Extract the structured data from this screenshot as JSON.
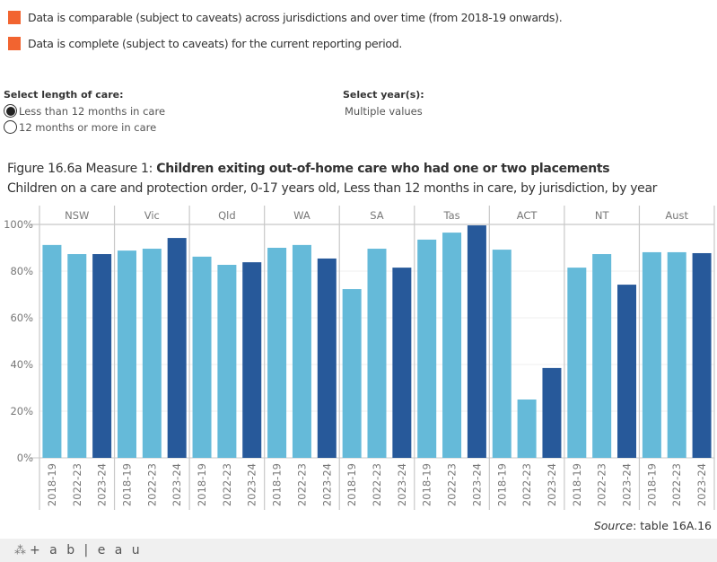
{
  "notes": [
    {
      "text": "Data is comparable (subject to caveats) across jurisdictions and over time (from 2018-19 onwards).",
      "color": "#F26430"
    },
    {
      "text": "Data is complete (subject to caveats) for the current reporting period.",
      "color": "#F26430"
    }
  ],
  "filters": {
    "length_of_care": {
      "label": "Select length of care:",
      "options": [
        {
          "label": "Less than 12 months in care",
          "selected": true
        },
        {
          "label": "12 months or more in care",
          "selected": false
        }
      ]
    },
    "years": {
      "label": "Select year(s):",
      "value": "Multiple values"
    }
  },
  "figure": {
    "title_prefix": "Figure 16.6a Measure 1: ",
    "title_bold": "Children exiting out-of-home care who had one or two placements",
    "subtitle": "Children on a care and protection order, 0-17 years old, Less than 12 months in care, by jurisdiction, by year"
  },
  "source": {
    "label": "Source",
    "text": ": table 16A.16"
  },
  "footer": {
    "brand": "+ a b | e a u"
  },
  "chart_data": {
    "type": "bar",
    "title": "Children exiting out-of-home care who had one or two placements",
    "xlabel": "",
    "ylabel": "",
    "ylim": [
      0,
      100
    ],
    "yticks": [
      0,
      20,
      40,
      60,
      80,
      100
    ],
    "ytick_format": "percent",
    "grid": true,
    "panels": [
      "NSW",
      "Vic",
      "Qld",
      "WA",
      "SA",
      "Tas",
      "ACT",
      "NT",
      "Aust"
    ],
    "categories": [
      "2018-19",
      "2022-23",
      "2023-24"
    ],
    "category_colors": [
      "#65BAD9",
      "#65BAD9",
      "#27599A"
    ],
    "series": [
      {
        "name": "NSW",
        "values": [
          91.2,
          87.3,
          87.3
        ]
      },
      {
        "name": "Vic",
        "values": [
          88.8,
          89.6,
          94.2
        ]
      },
      {
        "name": "Qld",
        "values": [
          86.2,
          82.7,
          83.8
        ]
      },
      {
        "name": "WA",
        "values": [
          90.0,
          91.2,
          85.4
        ]
      },
      {
        "name": "SA",
        "values": [
          72.3,
          89.6,
          81.5
        ]
      },
      {
        "name": "Tas",
        "values": [
          93.5,
          96.5,
          99.6
        ]
      },
      {
        "name": "ACT",
        "values": [
          89.2,
          25.0,
          38.5
        ]
      },
      {
        "name": "NT",
        "values": [
          81.5,
          87.3,
          74.2
        ]
      },
      {
        "name": "Aust",
        "values": [
          88.1,
          88.1,
          87.7
        ]
      }
    ]
  }
}
